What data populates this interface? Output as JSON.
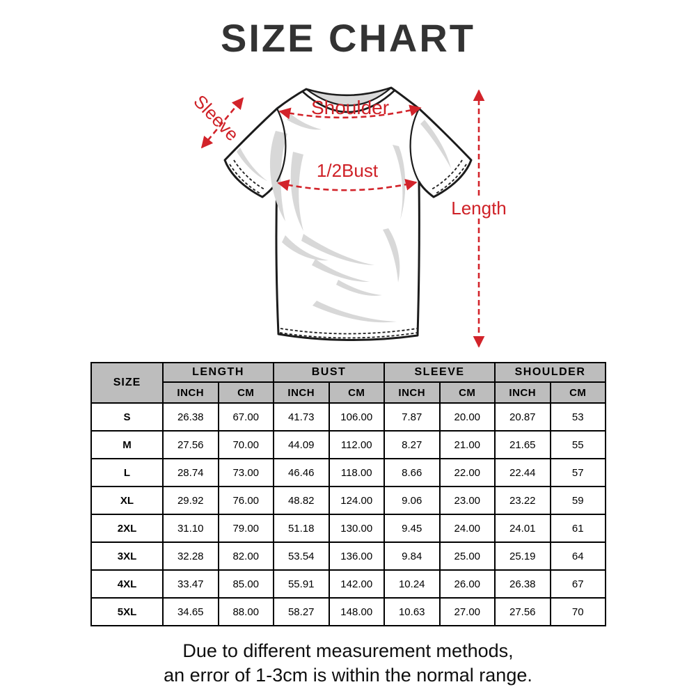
{
  "title": "SIZE CHART",
  "colors": {
    "accent_red": "#d2232a",
    "table_header_bg": "#bdbdbd",
    "title_color": "#333333",
    "shirt_outline": "#1c1c1c",
    "shade_gray": "#d8d8d8"
  },
  "diagram": {
    "labels": {
      "sleeve": "Sleeve",
      "shoulder": "Shoulder",
      "bust": "1/2Bust",
      "length": "Length"
    }
  },
  "size_chart": {
    "size_header": "SIZE",
    "groups": [
      {
        "label": "LENGTH"
      },
      {
        "label": "BUST"
      },
      {
        "label": "SLEEVE"
      },
      {
        "label": "SHOULDER"
      }
    ],
    "unit_headers": [
      "INCH",
      "CM",
      "INCH",
      "CM",
      "INCH",
      "CM",
      "INCH",
      "CM"
    ],
    "rows": [
      {
        "size": "S",
        "values": [
          "26.38",
          "67.00",
          "41.73",
          "106.00",
          "7.87",
          "20.00",
          "20.87",
          "53"
        ]
      },
      {
        "size": "M",
        "values": [
          "27.56",
          "70.00",
          "44.09",
          "112.00",
          "8.27",
          "21.00",
          "21.65",
          "55"
        ]
      },
      {
        "size": "L",
        "values": [
          "28.74",
          "73.00",
          "46.46",
          "118.00",
          "8.66",
          "22.00",
          "22.44",
          "57"
        ]
      },
      {
        "size": "XL",
        "values": [
          "29.92",
          "76.00",
          "48.82",
          "124.00",
          "9.06",
          "23.00",
          "23.22",
          "59"
        ]
      },
      {
        "size": "2XL",
        "values": [
          "31.10",
          "79.00",
          "51.18",
          "130.00",
          "9.45",
          "24.00",
          "24.01",
          "61"
        ]
      },
      {
        "size": "3XL",
        "values": [
          "32.28",
          "82.00",
          "53.54",
          "136.00",
          "9.84",
          "25.00",
          "25.19",
          "64"
        ]
      },
      {
        "size": "4XL",
        "values": [
          "33.47",
          "85.00",
          "55.91",
          "142.00",
          "10.24",
          "26.00",
          "26.38",
          "67"
        ]
      },
      {
        "size": "5XL",
        "values": [
          "34.65",
          "88.00",
          "58.27",
          "148.00",
          "10.63",
          "27.00",
          "27.56",
          "70"
        ]
      }
    ]
  },
  "footer": {
    "line1": "Due to different measurement methods,",
    "line2": "an error of 1-3cm is within the normal range."
  },
  "chart_data": {
    "type": "table",
    "title": "SIZE CHART",
    "columns": [
      "SIZE",
      "LENGTH INCH",
      "LENGTH CM",
      "BUST INCH",
      "BUST CM",
      "SLEEVE INCH",
      "SLEEVE CM",
      "SHOULDER INCH",
      "SHOULDER CM"
    ],
    "rows": [
      [
        "S",
        26.38,
        67.0,
        41.73,
        106.0,
        7.87,
        20.0,
        20.87,
        53
      ],
      [
        "M",
        27.56,
        70.0,
        44.09,
        112.0,
        8.27,
        21.0,
        21.65,
        55
      ],
      [
        "L",
        28.74,
        73.0,
        46.46,
        118.0,
        8.66,
        22.0,
        22.44,
        57
      ],
      [
        "XL",
        29.92,
        76.0,
        48.82,
        124.0,
        9.06,
        23.0,
        23.22,
        59
      ],
      [
        "2XL",
        31.1,
        79.0,
        51.18,
        130.0,
        9.45,
        24.0,
        24.01,
        61
      ],
      [
        "3XL",
        32.28,
        82.0,
        53.54,
        136.0,
        9.84,
        25.0,
        25.19,
        64
      ],
      [
        "4XL",
        33.47,
        85.0,
        55.91,
        142.0,
        10.24,
        26.0,
        26.38,
        67
      ],
      [
        "5XL",
        34.65,
        88.0,
        58.27,
        148.0,
        10.63,
        27.0,
        27.56,
        70
      ]
    ]
  }
}
